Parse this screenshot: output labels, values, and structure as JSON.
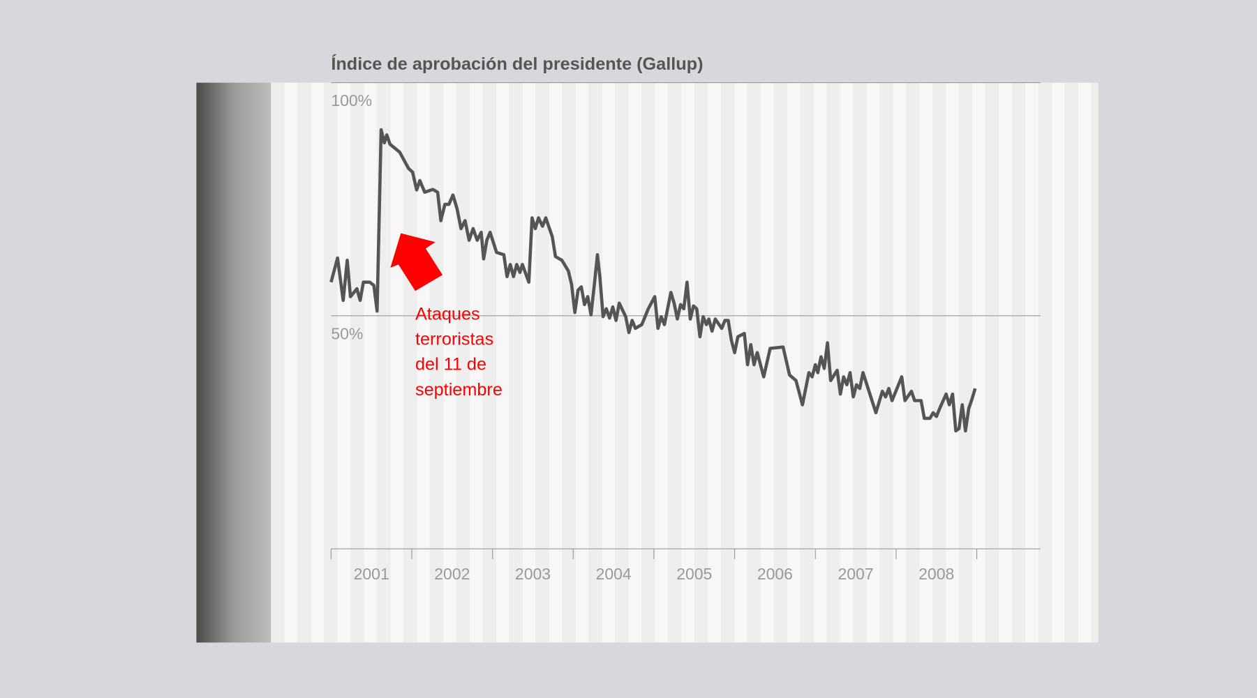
{
  "chart_data": {
    "type": "line",
    "title": "Índice de aprobación del presidente (Gallup)",
    "categories": [
      "2001",
      "2002",
      "2003",
      "2004",
      "2005",
      "2006",
      "2007",
      "2008"
    ],
    "xlim": [
      2001,
      2009.79
    ],
    "xticks": [
      2001,
      2002,
      2003,
      2004,
      2005,
      2006,
      2007,
      2008,
      2009
    ],
    "ylim": [
      0,
      100
    ],
    "yticks": [
      {
        "value": 100,
        "label": "100%"
      },
      {
        "value": 50,
        "label": "50%"
      }
    ],
    "grid": true,
    "annotation": {
      "lines": [
        "Ataques",
        "terroristas",
        "del 11 de",
        "septiembre"
      ],
      "color": "#ff0000"
    },
    "series": [
      {
        "color": "#555555",
        "x": [
          2001.0,
          2001.08,
          2001.15,
          2001.2,
          2001.24,
          2001.32,
          2001.36,
          2001.4,
          2001.48,
          2001.53,
          2001.57,
          2001.62,
          2001.66,
          2001.69,
          2001.73,
          2001.85,
          2001.96,
          2002.01,
          2002.06,
          2002.1,
          2002.16,
          2002.26,
          2002.32,
          2002.36,
          2002.41,
          2002.46,
          2002.51,
          2002.56,
          2002.61,
          2002.66,
          2002.71,
          2002.76,
          2002.81,
          2002.86,
          2002.89,
          2002.93,
          2002.97,
          2003.05,
          2003.14,
          2003.18,
          2003.22,
          2003.26,
          2003.3,
          2003.34,
          2003.37,
          2003.45,
          2003.49,
          2003.53,
          2003.57,
          2003.62,
          2003.66,
          2003.74,
          2003.78,
          2003.86,
          2003.94,
          2003.98,
          2004.02,
          2004.06,
          2004.1,
          2004.14,
          2004.18,
          2004.22,
          2004.26,
          2004.3,
          2004.33,
          2004.37,
          2004.41,
          2004.45,
          2004.49,
          2004.53,
          2004.57,
          2004.65,
          2004.69,
          2004.73,
          2004.77,
          2004.85,
          2004.93,
          2005.01,
          2005.05,
          2005.09,
          2005.13,
          2005.21,
          2005.25,
          2005.29,
          2005.33,
          2005.37,
          2005.41,
          2005.45,
          2005.49,
          2005.53,
          2005.57,
          2005.61,
          2005.65,
          2005.68,
          2005.72,
          2005.76,
          2005.84,
          2005.88,
          2005.92,
          2005.96,
          2006.0,
          2006.04,
          2006.12,
          2006.16,
          2006.2,
          2006.24,
          2006.28,
          2006.36,
          2006.44,
          2006.6,
          2006.68,
          2006.76,
          2006.84,
          2006.92,
          2006.96,
          2007.0,
          2007.03,
          2007.07,
          2007.11,
          2007.15,
          2007.19,
          2007.27,
          2007.31,
          2007.35,
          2007.39,
          2007.43,
          2007.47,
          2007.51,
          2007.55,
          2007.59,
          2007.67,
          2007.75,
          2007.83,
          2007.87,
          2007.91,
          2007.95,
          2008.07,
          2008.11,
          2008.19,
          2008.23,
          2008.31,
          2008.35,
          2008.42,
          2008.46,
          2008.5,
          2008.54,
          2008.62,
          2008.66,
          2008.7,
          2008.74,
          2008.78,
          2008.82,
          2008.86,
          2008.9,
          2008.94,
          2008.98
        ],
        "values": [
          57.2,
          62.4,
          53.3,
          61.9,
          54.1,
          55.8,
          53.3,
          57.2,
          57.2,
          56.5,
          51.0,
          89.9,
          87.1,
          88.8,
          86.8,
          85.1,
          81.6,
          80.8,
          77.0,
          79.0,
          76.5,
          77.1,
          76.5,
          70.4,
          73.9,
          73.9,
          75.9,
          73.0,
          68.7,
          70.4,
          66.2,
          68.7,
          66.2,
          67.9,
          62.2,
          66.2,
          67.9,
          63.6,
          63.1,
          58.4,
          61.0,
          58.4,
          61.0,
          59.3,
          61.0,
          57.2,
          71.0,
          68.7,
          71.0,
          69.2,
          71.0,
          67.0,
          62.7,
          61.9,
          59.6,
          56.7,
          50.7,
          55.5,
          56.2,
          52.4,
          54.1,
          50.2,
          56.4,
          63.1,
          58.4,
          49.8,
          51.5,
          49.5,
          51.9,
          49.0,
          52.7,
          49.8,
          46.4,
          49.0,
          47.3,
          48.1,
          51.5,
          54.1,
          47.3,
          49.8,
          48.1,
          55.0,
          52.7,
          49.3,
          52.4,
          51.5,
          57.2,
          49.3,
          52.1,
          51.5,
          45.5,
          49.8,
          48.1,
          49.3,
          46.7,
          49.3,
          47.3,
          49.0,
          49.0,
          44.7,
          42.1,
          45.5,
          46.2,
          39.5,
          43.8,
          39.5,
          42.1,
          36.9,
          43.0,
          43.3,
          37.3,
          36.1,
          30.9,
          37.8,
          36.9,
          39.5,
          37.8,
          41.2,
          38.7,
          44.2,
          36.1,
          38.3,
          33.2,
          36.9,
          35.2,
          37.8,
          32.6,
          35.2,
          34.4,
          37.8,
          33.5,
          29.2,
          33.8,
          32.6,
          34.4,
          31.8,
          36.9,
          31.8,
          33.8,
          31.8,
          31.8,
          28.0,
          28.0,
          29.2,
          28.4,
          30.1,
          33.2,
          30.9,
          33.2,
          25.3,
          25.8,
          30.9,
          25.3,
          30.1,
          32.1,
          34.4
        ]
      }
    ]
  }
}
